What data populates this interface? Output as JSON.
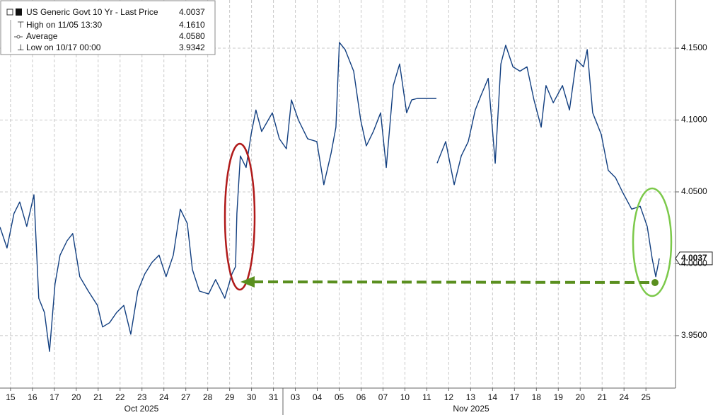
{
  "chart_data": {
    "type": "line",
    "legend": [
      {
        "label": "US Generic Govt 10 Yr - Last Price",
        "value": "4.0037"
      },
      {
        "label": "High on 11/05 13:30",
        "value": "4.1610"
      },
      {
        "label": "Average",
        "value": "4.0580"
      },
      {
        "label": "Low on 10/17 00:00",
        "value": "3.9342"
      }
    ],
    "last_price": 4.0037,
    "groups": [
      "Oct 2025",
      "Nov 2025"
    ],
    "grid": true,
    "xlim": [
      -0.48,
      30.35
    ],
    "xticks": [
      {
        "value": 0,
        "label": "15"
      },
      {
        "value": 1,
        "label": "16"
      },
      {
        "value": 2,
        "label": "17"
      },
      {
        "value": 3,
        "label": "20"
      },
      {
        "value": 4,
        "label": "21"
      },
      {
        "value": 5,
        "label": "22"
      },
      {
        "value": 6,
        "label": "23"
      },
      {
        "value": 7,
        "label": "24"
      },
      {
        "value": 8,
        "label": "27"
      },
      {
        "value": 9,
        "label": "28"
      },
      {
        "value": 10,
        "label": "29"
      },
      {
        "value": 11,
        "label": "30"
      },
      {
        "value": 12,
        "label": "31"
      },
      {
        "value": 13,
        "label": "03"
      },
      {
        "value": 14,
        "label": "04"
      },
      {
        "value": 15,
        "label": "05"
      },
      {
        "value": 16,
        "label": "06"
      },
      {
        "value": 17,
        "label": "07"
      },
      {
        "value": 18,
        "label": "10"
      },
      {
        "value": 19,
        "label": "11"
      },
      {
        "value": 20,
        "label": "12"
      },
      {
        "value": 21,
        "label": "13"
      },
      {
        "value": 22,
        "label": "14"
      },
      {
        "value": 23,
        "label": "17"
      },
      {
        "value": 24,
        "label": "18"
      },
      {
        "value": 25,
        "label": "19"
      },
      {
        "value": 26,
        "label": "20"
      },
      {
        "value": 27,
        "label": "21"
      },
      {
        "value": 28,
        "label": "24"
      },
      {
        "value": 29,
        "label": "25"
      }
    ],
    "ylim": [
      3.9135,
      4.1835
    ],
    "yticks": [
      {
        "value": 3.95,
        "label": "3.9500"
      },
      {
        "value": 4.0,
        "label": "4.0000"
      },
      {
        "value": 4.05,
        "label": "4.0500"
      },
      {
        "value": 4.1,
        "label": "4.1000"
      },
      {
        "value": 4.15,
        "label": "4.1500"
      }
    ],
    "series": [
      {
        "name": "US Generic Govt 10 Yr - Last Price",
        "color": "#123f80",
        "x": [
          -0.48,
          -0.16,
          0.16,
          0.42,
          0.74,
          1.07,
          1.29,
          1.55,
          1.78,
          2.03,
          2.26,
          2.58,
          2.84,
          3.16,
          3.55,
          3.97,
          4.2,
          4.52,
          4.84,
          5.17,
          5.49,
          5.81,
          6.13,
          6.46,
          6.78,
          7.1,
          7.43,
          7.75,
          8.07,
          8.3,
          8.62,
          9.04,
          9.36,
          9.78,
          10.11,
          10.27,
          10.33,
          10.49,
          10.75,
          10.98,
          11.2,
          11.46,
          11.95,
          12.27,
          12.59,
          12.82,
          13.14,
          13.56,
          13.98,
          14.3,
          14.63,
          14.85,
          15.01,
          15.27,
          15.66,
          15.98,
          16.24,
          16.56,
          16.89,
          17.15,
          17.47,
          17.76,
          18.08,
          18.31,
          18.57,
          19.44,
          19.45,
          19.47,
          19.86,
          20.25,
          20.57,
          20.89,
          21.21,
          21.47,
          21.8,
          22.12,
          22.38,
          22.6,
          22.93,
          23.25,
          23.57,
          23.89,
          24.22,
          24.44,
          24.77,
          25.19,
          25.51,
          25.83,
          26.15,
          26.32,
          26.57,
          26.96,
          27.28,
          27.61,
          27.93,
          28.35,
          28.74,
          29.06,
          29.29,
          29.45,
          29.61
        ],
        "values": [
          4.0255,
          4.011,
          4.035,
          4.043,
          4.026,
          4.048,
          3.976,
          3.966,
          3.939,
          3.986,
          4.006,
          4.016,
          4.021,
          3.991,
          3.981,
          3.971,
          3.956,
          3.959,
          3.966,
          3.971,
          3.951,
          3.981,
          3.993,
          4.001,
          4.006,
          3.991,
          4.006,
          4.038,
          4.028,
          3.996,
          3.981,
          3.979,
          3.989,
          3.976,
          3.993,
          3.998,
          4.035,
          4.075,
          4.067,
          4.09,
          4.107,
          4.092,
          4.105,
          4.087,
          4.08,
          4.114,
          4.1,
          4.087,
          4.085,
          4.055,
          4.077,
          4.095,
          4.154,
          4.149,
          4.134,
          4.1,
          4.082,
          4.092,
          4.105,
          4.067,
          4.124,
          4.139,
          4.105,
          4.114,
          4.115,
          4.115,
          null,
          4.07,
          4.085,
          4.055,
          4.075,
          4.085,
          4.107,
          4.117,
          4.129,
          4.07,
          4.139,
          4.152,
          4.137,
          4.134,
          4.137,
          4.114,
          4.095,
          4.124,
          4.112,
          4.124,
          4.107,
          4.142,
          4.137,
          4.149,
          4.105,
          4.09,
          4.065,
          4.06,
          4.05,
          4.038,
          4.04,
          4.026,
          4.003,
          3.991,
          4.0037
        ]
      }
    ]
  }
}
